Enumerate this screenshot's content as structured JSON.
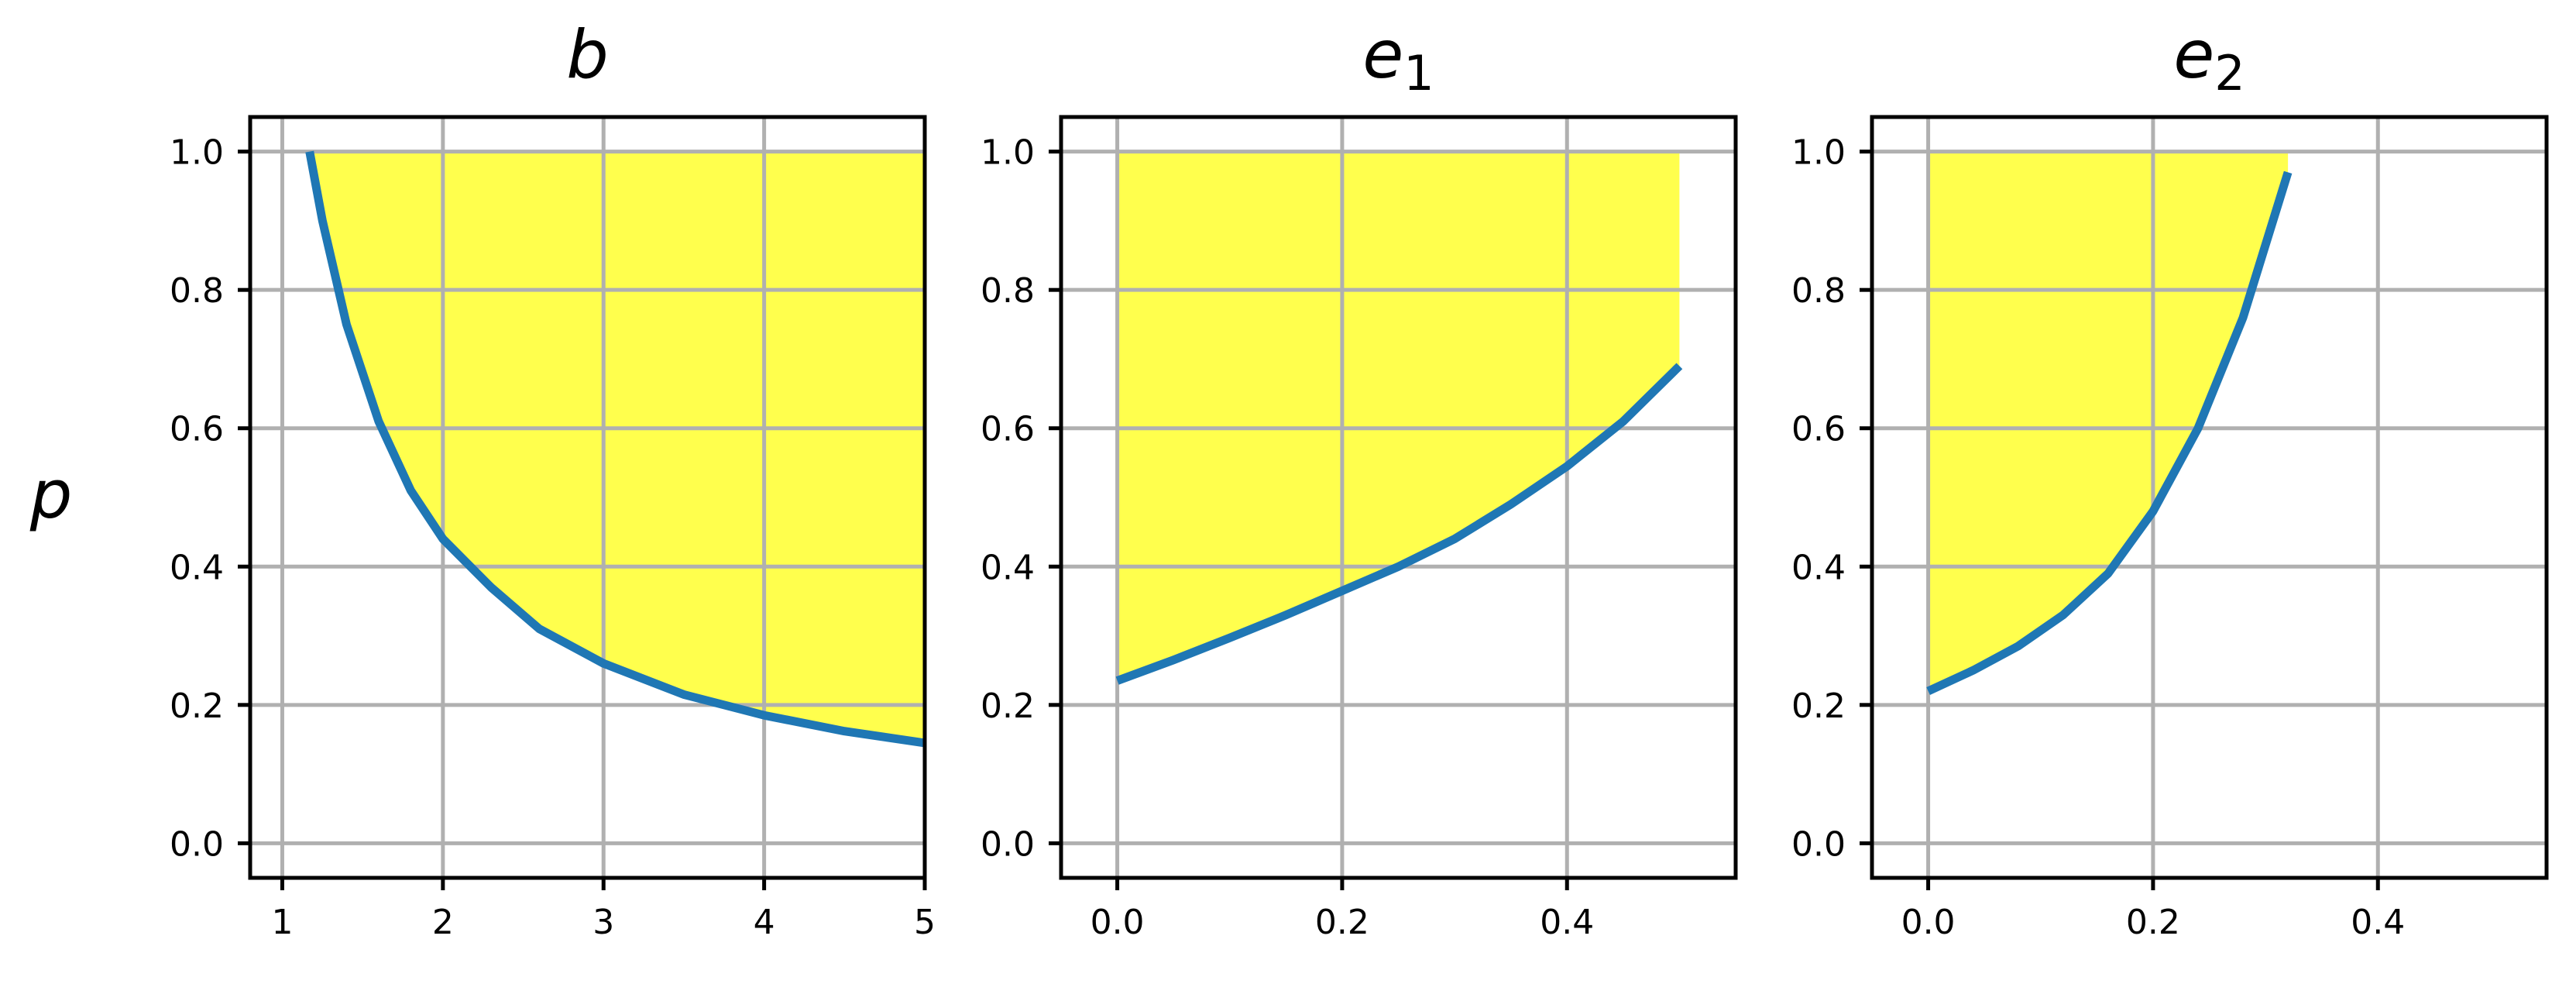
{
  "figure": {
    "ylabel": "p"
  },
  "colors": {
    "curve": "#1f77b4",
    "fill": "#ffff4d",
    "grid": "#b0b0b0"
  },
  "chart_data": [
    {
      "type": "area",
      "title": "b",
      "title_sub": "",
      "xlim": [
        0.8,
        5.0
      ],
      "ylim": [
        -0.05,
        1.05
      ],
      "xticks": [
        "1",
        "2",
        "3",
        "4",
        "5"
      ],
      "xtick_values": [
        1,
        2,
        3,
        4,
        5
      ],
      "yticks": [
        "0.0",
        "0.2",
        "0.4",
        "0.6",
        "0.8",
        "1.0"
      ],
      "ytick_values": [
        0.0,
        0.2,
        0.4,
        0.6,
        0.8,
        1.0
      ],
      "grid": true,
      "fill_region": "above curve up to p = 1.0",
      "fill_top": 1.0,
      "fill_xmax": 5.0,
      "curve": {
        "x": [
          1.17,
          1.25,
          1.4,
          1.6,
          1.8,
          2.0,
          2.3,
          2.6,
          3.0,
          3.5,
          4.0,
          4.5,
          5.0
        ],
        "y": [
          1.0,
          0.9,
          0.75,
          0.61,
          0.51,
          0.44,
          0.37,
          0.31,
          0.26,
          0.215,
          0.185,
          0.162,
          0.145
        ]
      }
    },
    {
      "type": "area",
      "title": "e",
      "title_sub": "1",
      "xlim": [
        -0.05,
        0.55
      ],
      "ylim": [
        -0.05,
        1.05
      ],
      "xticks": [
        "0.0",
        "0.2",
        "0.4"
      ],
      "xtick_values": [
        0.0,
        0.2,
        0.4
      ],
      "yticks": [
        "0.0",
        "0.2",
        "0.4",
        "0.6",
        "0.8",
        "1.0"
      ],
      "ytick_values": [
        0.0,
        0.2,
        0.4,
        0.6,
        0.8,
        1.0
      ],
      "grid": true,
      "fill_region": "above curve up to p = 1.0",
      "fill_top": 1.0,
      "fill_xmax": 0.5,
      "curve": {
        "x": [
          0.0,
          0.05,
          0.1,
          0.15,
          0.2,
          0.25,
          0.3,
          0.35,
          0.4,
          0.45,
          0.5
        ],
        "y": [
          0.235,
          0.265,
          0.297,
          0.33,
          0.365,
          0.4,
          0.44,
          0.49,
          0.545,
          0.61,
          0.69
        ]
      }
    },
    {
      "type": "area",
      "title": "e",
      "title_sub": "2",
      "xlim": [
        -0.05,
        0.55
      ],
      "ylim": [
        -0.05,
        1.05
      ],
      "xticks": [
        "0.0",
        "0.2",
        "0.4"
      ],
      "xtick_values": [
        0.0,
        0.2,
        0.4
      ],
      "yticks": [
        "0.0",
        "0.2",
        "0.4",
        "0.6",
        "0.8",
        "1.0"
      ],
      "ytick_values": [
        0.0,
        0.2,
        0.4,
        0.6,
        0.8,
        1.0
      ],
      "grid": true,
      "fill_region": "above curve up to p = 1.0",
      "fill_top": 1.0,
      "fill_xmax": 0.32,
      "curve": {
        "x": [
          0.0,
          0.04,
          0.08,
          0.12,
          0.16,
          0.2,
          0.24,
          0.28,
          0.32
        ],
        "y": [
          0.22,
          0.25,
          0.285,
          0.33,
          0.39,
          0.48,
          0.6,
          0.76,
          0.97
        ]
      }
    }
  ]
}
